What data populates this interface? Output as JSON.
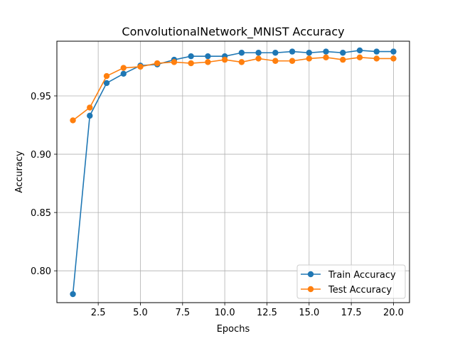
{
  "chart_data": {
    "type": "line",
    "title": "ConvolutionalNetwork_MNIST Accuracy",
    "xlabel": "Epochs",
    "ylabel": "Accuracy",
    "xlim": [
      0.05,
      20.95
    ],
    "ylim": [
      0.7727,
      0.9969
    ],
    "xticks": [
      2.5,
      5.0,
      7.5,
      10.0,
      12.5,
      15.0,
      17.5,
      20.0
    ],
    "xtick_labels": [
      "2.5",
      "5.0",
      "7.5",
      "10.0",
      "12.5",
      "15.0",
      "17.5",
      "20.0"
    ],
    "yticks": [
      0.8,
      0.85,
      0.9,
      0.95
    ],
    "ytick_labels": [
      "0.80",
      "0.85",
      "0.90",
      "0.95"
    ],
    "grid": true,
    "legend_position": "lower-right",
    "x": [
      1,
      2,
      3,
      4,
      5,
      6,
      7,
      8,
      9,
      10,
      11,
      12,
      13,
      14,
      15,
      16,
      17,
      18,
      19,
      20
    ],
    "series": [
      {
        "name": "Train Accuracy",
        "color": "#1f77b4",
        "values": [
          0.78,
          0.933,
          0.961,
          0.969,
          0.976,
          0.977,
          0.981,
          0.984,
          0.984,
          0.984,
          0.987,
          0.987,
          0.987,
          0.988,
          0.987,
          0.988,
          0.987,
          0.989,
          0.988,
          0.988
        ]
      },
      {
        "name": "Test Accuracy",
        "color": "#ff7f0e",
        "values": [
          0.929,
          0.94,
          0.967,
          0.974,
          0.975,
          0.978,
          0.979,
          0.978,
          0.979,
          0.981,
          0.979,
          0.982,
          0.98,
          0.98,
          0.982,
          0.983,
          0.981,
          0.983,
          0.982,
          0.982
        ]
      }
    ]
  }
}
